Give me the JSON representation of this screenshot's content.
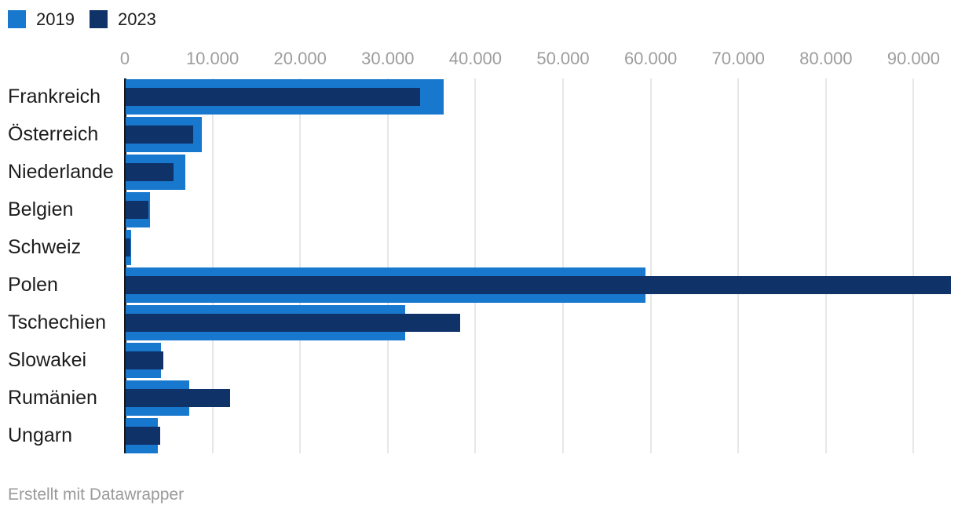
{
  "chart_data": {
    "type": "bar",
    "orientation": "horizontal",
    "bar_style": "overlapping",
    "categories": [
      "Frankreich",
      "Österreich",
      "Niederlande",
      "Belgien",
      "Schweiz",
      "Polen",
      "Tschechien",
      "Slowakei",
      "Rumänien",
      "Ungarn"
    ],
    "series": [
      {
        "name": "2019",
        "color": "#1878ce",
        "values": [
          36300,
          8700,
          6800,
          2800,
          600,
          59300,
          31900,
          4000,
          7300,
          3700
        ]
      },
      {
        "name": "2023",
        "color": "#0f3269",
        "values": [
          33600,
          7700,
          5500,
          2600,
          500,
          94200,
          38200,
          4300,
          11900,
          3900
        ]
      }
    ],
    "xlim": [
      0,
      95000
    ],
    "xticks": [
      0,
      10000,
      20000,
      30000,
      40000,
      50000,
      60000,
      70000,
      80000,
      90000
    ],
    "xtick_labels": [
      "0",
      "10.000",
      "20.000",
      "30.000",
      "40.000",
      "50.000",
      "60.000",
      "70.000",
      "80.000",
      "90.000"
    ],
    "grid": "vertical",
    "legend_position": "top-left",
    "title": "",
    "xlabel": "",
    "ylabel": "",
    "footer": "Erstellt mit Datawrapper",
    "axis_line_color": "#161616",
    "gridline_color": "#e7e7e7",
    "tick_label_color": "#9d9d9d",
    "category_label_color": "#1d1d1d"
  }
}
